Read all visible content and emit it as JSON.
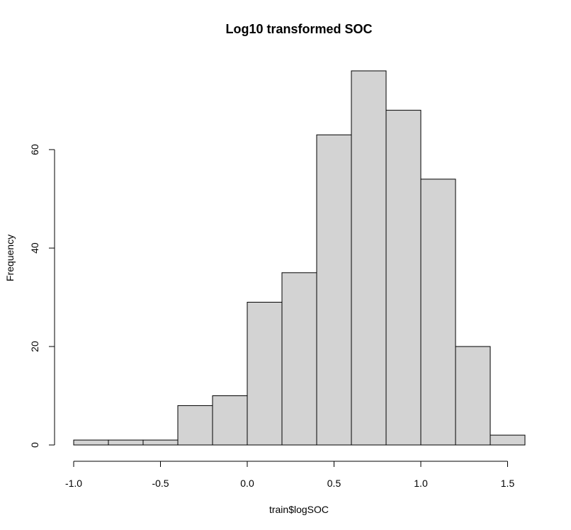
{
  "chart_data": {
    "type": "bar",
    "title": "Log10 transformed SOC",
    "xlabel": "train$logSOC",
    "ylabel": "Frequency",
    "bins": [
      {
        "start": -1.0,
        "end": -0.8,
        "count": 1
      },
      {
        "start": -0.8,
        "end": -0.6,
        "count": 1
      },
      {
        "start": -0.6,
        "end": -0.4,
        "count": 1
      },
      {
        "start": -0.4,
        "end": -0.2,
        "count": 8
      },
      {
        "start": -0.2,
        "end": 0.0,
        "count": 10
      },
      {
        "start": 0.0,
        "end": 0.2,
        "count": 29
      },
      {
        "start": 0.2,
        "end": 0.4,
        "count": 35
      },
      {
        "start": 0.4,
        "end": 0.6,
        "count": 63
      },
      {
        "start": 0.6,
        "end": 0.8,
        "count": 76
      },
      {
        "start": 0.8,
        "end": 1.0,
        "count": 68
      },
      {
        "start": 1.0,
        "end": 1.2,
        "count": 54
      },
      {
        "start": 1.2,
        "end": 1.4,
        "count": 20
      },
      {
        "start": 1.4,
        "end": 1.6,
        "count": 2
      }
    ],
    "xlim": [
      -1.0,
      1.6
    ],
    "ylim": [
      0,
      76
    ],
    "x_ticks": [
      -1.0,
      -0.5,
      0.0,
      0.5,
      1.0,
      1.5
    ],
    "x_tick_labels": [
      "-1.0",
      "-0.5",
      "0.0",
      "0.5",
      "1.0",
      "1.5"
    ],
    "y_ticks": [
      0,
      20,
      40,
      60
    ],
    "y_tick_labels": [
      "0",
      "20",
      "40",
      "60"
    ],
    "bar_fill": "#d3d3d3",
    "bar_stroke": "#000000",
    "grid": false,
    "legend": "none"
  }
}
